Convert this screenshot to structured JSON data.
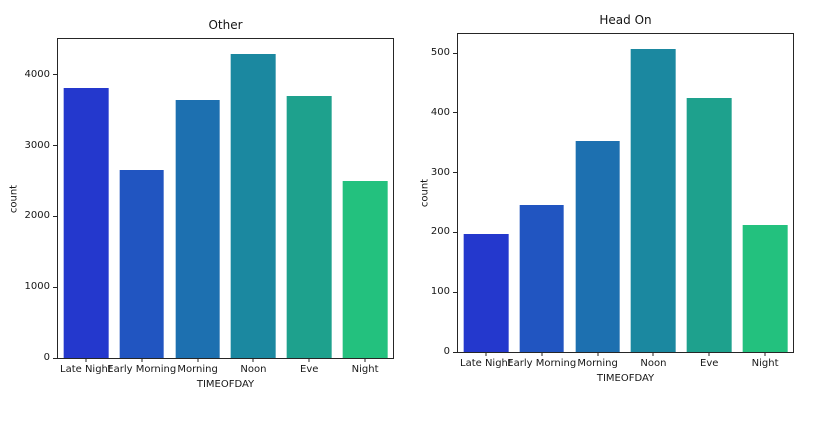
{
  "figure": {
    "background": "#ffffff"
  },
  "chart_data": [
    {
      "type": "bar",
      "title": "Other",
      "xlabel": "TIMEOFDAY",
      "ylabel": "count",
      "categories": [
        "Late Night",
        "Early Morning",
        "Morning",
        "Noon",
        "Eve",
        "Night"
      ],
      "values": [
        3810,
        2650,
        3650,
        4290,
        3700,
        2500
      ],
      "ylim": [
        0,
        4505
      ],
      "yticks": [
        0,
        1000,
        2000,
        3000,
        4000
      ],
      "bar_colors": [
        "#2438cd",
        "#2155c1",
        "#1d70b0",
        "#1b88a0",
        "#1ea18d",
        "#23c17e"
      ],
      "bar_width": 0.8,
      "grid": false,
      "legend": "none"
    },
    {
      "type": "bar",
      "title": "Head On",
      "xlabel": "TIMEOFDAY",
      "ylabel": "count",
      "categories": [
        "Late Night",
        "Early Morning",
        "Morning",
        "Noon",
        "Eve",
        "Night"
      ],
      "values": [
        198,
        246,
        353,
        507,
        425,
        213
      ],
      "ylim": [
        0,
        532
      ],
      "yticks": [
        0,
        100,
        200,
        300,
        400,
        500
      ],
      "bar_colors": [
        "#2438cd",
        "#2155c1",
        "#1d70b0",
        "#1b88a0",
        "#1ea18d",
        "#23c17e"
      ],
      "bar_width": 0.8,
      "grid": false,
      "legend": "none"
    }
  ]
}
